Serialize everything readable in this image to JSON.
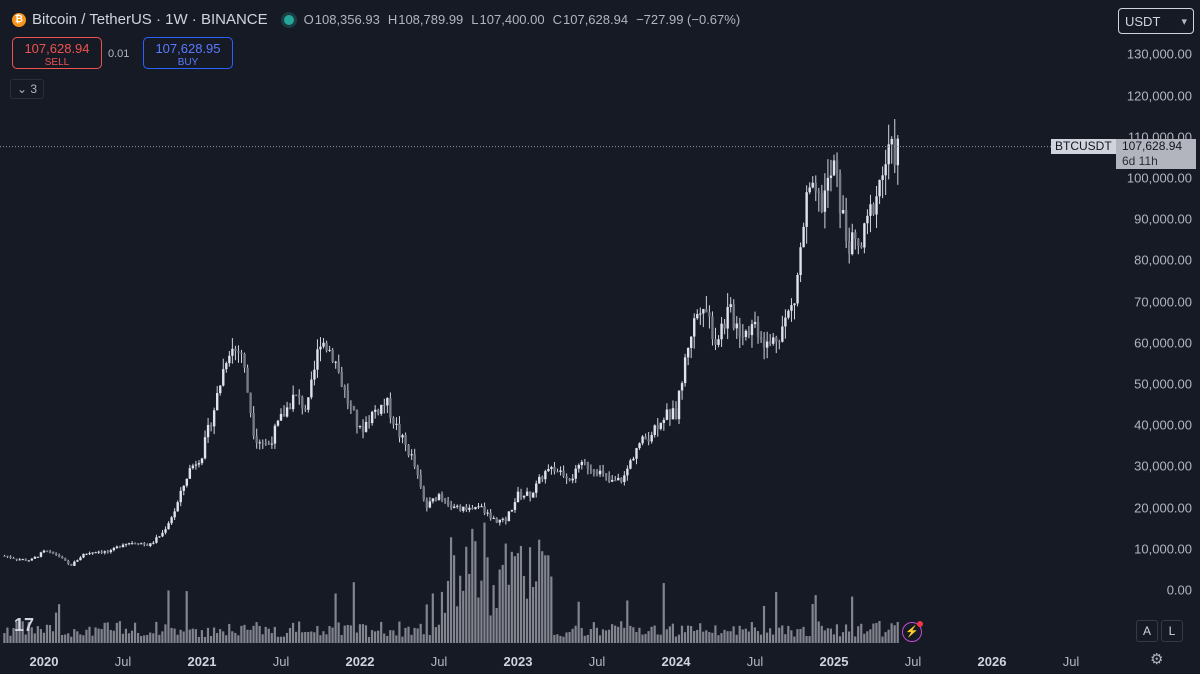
{
  "header": {
    "coin_glyph": "₿",
    "title": "Bitcoin / TetherUS · 1W · BINANCE",
    "ohlc": [
      {
        "key": "O",
        "value": "108,356.93"
      },
      {
        "key": "H",
        "value": "108,789.99"
      },
      {
        "key": "L",
        "value": "107,400.00"
      },
      {
        "key": "C",
        "value": "107,628.94"
      }
    ],
    "change": "−727.99 (−0.67%)"
  },
  "trade": {
    "sell_price": "107,628.94",
    "sell_label": "SELL",
    "spread": "0.01",
    "buy_price": "107,628.95",
    "buy_label": "BUY",
    "collapse_label": "⌄ 3"
  },
  "currency_selector": "USDT",
  "price_tag": {
    "symbol": "BTCUSDT",
    "price": "107,628.94",
    "countdown": "6d 11h"
  },
  "corner_buttons": {
    "auto": "A",
    "log": "L",
    "settings_glyph": "⚙"
  },
  "logo_text": "17",
  "colors": {
    "background": "#161a25",
    "candle": "#d1d4dc",
    "volume": "#9598a1",
    "sell": "#ef5350",
    "buy": "#2962ff"
  },
  "chart_data": {
    "type": "candlestick",
    "interval": "1W",
    "yaxis_ticks": [
      "130,000.00",
      "120,000.00",
      "110,000.00",
      "100,000.00",
      "90,000.00",
      "80,000.00",
      "70,000.00",
      "60,000.00",
      "50,000.00",
      "40,000.00",
      "30,000.00",
      "20,000.00",
      "10,000.00",
      "0.00"
    ],
    "ylim": [
      0,
      130000
    ],
    "xaxis_ticks": [
      {
        "label": "2020",
        "major": true,
        "date": "2020-01"
      },
      {
        "label": "Jul",
        "major": false,
        "date": "2020-07"
      },
      {
        "label": "2021",
        "major": true,
        "date": "2021-01"
      },
      {
        "label": "Jul",
        "major": false,
        "date": "2021-07"
      },
      {
        "label": "2022",
        "major": true,
        "date": "2022-01"
      },
      {
        "label": "Jul",
        "major": false,
        "date": "2022-07"
      },
      {
        "label": "2023",
        "major": true,
        "date": "2023-01"
      },
      {
        "label": "Jul",
        "major": false,
        "date": "2023-07"
      },
      {
        "label": "2024",
        "major": true,
        "date": "2024-01"
      },
      {
        "label": "Jul",
        "major": false,
        "date": "2024-07"
      },
      {
        "label": "2025",
        "major": true,
        "date": "2025-01"
      },
      {
        "label": "Jul",
        "major": false,
        "date": "2025-07"
      },
      {
        "label": "2026",
        "major": true,
        "date": "2026-01"
      },
      {
        "label": "Jul",
        "major": false,
        "date": "2026-07"
      }
    ],
    "grid": false,
    "close_path": [
      {
        "date": "2019-10",
        "close": 8300
      },
      {
        "date": "2019-11",
        "close": 7500
      },
      {
        "date": "2019-12",
        "close": 7200
      },
      {
        "date": "2020-01",
        "close": 9300
      },
      {
        "date": "2020-02",
        "close": 8600
      },
      {
        "date": "2020-03",
        "close": 5800
      },
      {
        "date": "2020-04",
        "close": 8700
      },
      {
        "date": "2020-05",
        "close": 9450
      },
      {
        "date": "2020-06",
        "close": 9150
      },
      {
        "date": "2020-07",
        "close": 11300
      },
      {
        "date": "2020-08",
        "close": 11650
      },
      {
        "date": "2020-09",
        "close": 10800
      },
      {
        "date": "2020-10",
        "close": 13800
      },
      {
        "date": "2020-11",
        "close": 19700
      },
      {
        "date": "2020-12",
        "close": 29000
      },
      {
        "date": "2021-01",
        "close": 33000
      },
      {
        "date": "2021-02",
        "close": 45000
      },
      {
        "date": "2021-03",
        "close": 58800
      },
      {
        "date": "2021-04",
        "close": 57700
      },
      {
        "date": "2021-05",
        "close": 37300
      },
      {
        "date": "2021-06",
        "close": 35000
      },
      {
        "date": "2021-07",
        "close": 41500
      },
      {
        "date": "2021-08",
        "close": 47100
      },
      {
        "date": "2021-09",
        "close": 43800
      },
      {
        "date": "2021-10",
        "close": 61300
      },
      {
        "date": "2021-11",
        "close": 57000
      },
      {
        "date": "2021-12",
        "close": 46300
      },
      {
        "date": "2022-01",
        "close": 38500
      },
      {
        "date": "2022-02",
        "close": 43200
      },
      {
        "date": "2022-03",
        "close": 45500
      },
      {
        "date": "2022-04",
        "close": 37700
      },
      {
        "date": "2022-05",
        "close": 31800
      },
      {
        "date": "2022-06",
        "close": 19900
      },
      {
        "date": "2022-07",
        "close": 23300
      },
      {
        "date": "2022-08",
        "close": 20000
      },
      {
        "date": "2022-09",
        "close": 19400
      },
      {
        "date": "2022-10",
        "close": 20500
      },
      {
        "date": "2022-11",
        "close": 17200
      },
      {
        "date": "2022-12",
        "close": 16550
      },
      {
        "date": "2023-01",
        "close": 23100
      },
      {
        "date": "2023-02",
        "close": 23150
      },
      {
        "date": "2023-03",
        "close": 28500
      },
      {
        "date": "2023-04",
        "close": 29250
      },
      {
        "date": "2023-05",
        "close": 27200
      },
      {
        "date": "2023-06",
        "close": 30500
      },
      {
        "date": "2023-07",
        "close": 29250
      },
      {
        "date": "2023-08",
        "close": 25950
      },
      {
        "date": "2023-09",
        "close": 26970
      },
      {
        "date": "2023-10",
        "close": 34650
      },
      {
        "date": "2023-11",
        "close": 37700
      },
      {
        "date": "2023-12",
        "close": 42300
      },
      {
        "date": "2024-01",
        "close": 42600
      },
      {
        "date": "2024-02",
        "close": 61150
      },
      {
        "date": "2024-03",
        "close": 71300
      },
      {
        "date": "2024-04",
        "close": 60650
      },
      {
        "date": "2024-05",
        "close": 67500
      },
      {
        "date": "2024-06",
        "close": 62750
      },
      {
        "date": "2024-07",
        "close": 64600
      },
      {
        "date": "2024-08",
        "close": 58950
      },
      {
        "date": "2024-09",
        "close": 63300
      },
      {
        "date": "2024-10",
        "close": 70200
      },
      {
        "date": "2024-11",
        "close": 96400
      },
      {
        "date": "2024-12",
        "close": 93400
      },
      {
        "date": "2025-01",
        "close": 102400
      },
      {
        "date": "2025-02",
        "close": 84350
      },
      {
        "date": "2025-03",
        "close": 82550
      },
      {
        "date": "2025-04",
        "close": 94200
      },
      {
        "date": "2025-05",
        "close": 104600
      },
      {
        "date": "2025-06",
        "close": 107600
      }
    ],
    "last_price": 107628.94
  }
}
